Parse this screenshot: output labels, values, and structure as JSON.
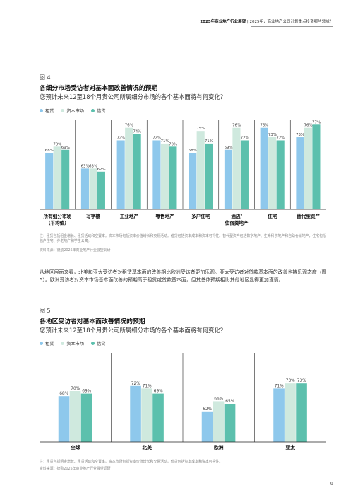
{
  "header": {
    "title_bold": "2025年商业地产行业展望",
    "title_rest": " | 2025年，商业地产公司计划重点投资哪些领域？"
  },
  "colors": {
    "rent": "#8ec8ec",
    "capital": "#cfe9de",
    "debt": "#5cc0ad",
    "grid": "#222222"
  },
  "figure4": {
    "label": "图 4",
    "title": "各细分市场受访者对基本面改善情况的预期",
    "subtitle": "您预计未来12至18个月贵公司所属细分市场的各个基本面将有何变化？",
    "legend": [
      "租赁",
      "资本市场",
      "借贷"
    ],
    "note": "注：租赁包括租金增长、租赁活动和空置率。资本市场包括资本价值增长和交易活动。借贷包括资本成本和资本可得性。替代型资产包括数字地产、生命科学地产和自助仓储地产，住宅包括独户住宅、养老地产和学生公寓。",
    "source": "资料来源：德勤2025年商业地产行业展望调研"
  },
  "chart_data": [
    {
      "type": "bar",
      "categories": [
        "所有细分市场（平均值）",
        "写字楼",
        "工业地产",
        "零售地产",
        "多户住宅",
        "酒店/住宿类地产",
        "住宅",
        "替代型资产"
      ],
      "category_lines": [
        [
          "所有细分市场",
          "（平均值）"
        ],
        [
          "写字楼"
        ],
        [
          "工业地产"
        ],
        [
          "零售地产"
        ],
        [
          "多户住宅"
        ],
        [
          "酒店/",
          "住宿类地产"
        ],
        [
          "住宅"
        ],
        [
          "替代型资产"
        ]
      ],
      "series": [
        {
          "name": "租赁",
          "values": [
            68,
            63,
            72,
            72,
            68,
            69,
            76,
            73
          ]
        },
        {
          "name": "资本市场",
          "values": [
            70,
            63,
            76,
            71,
            75,
            76,
            73,
            76
          ]
        },
        {
          "name": "借贷",
          "values": [
            69,
            62,
            74,
            70,
            71,
            72,
            72,
            77
          ]
        }
      ],
      "labels": [
        [
          "68%",
          "63%",
          "72%",
          "72%",
          "68%",
          "69%",
          "76%",
          "73%"
        ],
        [
          "70%",
          "63%",
          "76%",
          "71%",
          "75%",
          "76%",
          "73%",
          "76%"
        ],
        [
          "69%",
          "62%",
          "74%",
          "70%",
          "71%",
          "72%",
          "72%",
          "77%"
        ]
      ],
      "ylim": [
        50,
        80
      ]
    },
    {
      "type": "bar",
      "categories": [
        "全球",
        "北美",
        "欧洲",
        "亚太"
      ],
      "category_lines": [
        [
          "全球"
        ],
        [
          "北美"
        ],
        [
          "欧洲"
        ],
        [
          "亚太"
        ]
      ],
      "series": [
        {
          "name": "租赁",
          "values": [
            68,
            72,
            62,
            71
          ]
        },
        {
          "name": "资本市场",
          "values": [
            70,
            71,
            66,
            73
          ]
        },
        {
          "name": "借贷",
          "values": [
            69,
            69,
            65,
            73
          ]
        }
      ],
      "labels": [
        [
          "68%",
          "72%",
          "62%",
          "71%"
        ],
        [
          "70%",
          "71%",
          "66%",
          "73%"
        ],
        [
          "69%",
          "69%",
          "65%",
          "73%"
        ]
      ],
      "ylim": [
        50,
        80
      ]
    }
  ],
  "paragraph": "从地区层面来看，北美和亚太受访者对租赁基本面的改善相比欧洲受访者更加乐观。亚太受访者对贷款基本面的改善也持乐观态度（图5）。欧洲受访者对资本市场基本面改善的预期高于租赁或贷款基本面，但其总体预期相比其他地区显得更加谨慎。",
  "figure5": {
    "label": "图 5",
    "title": "各地区受访者对基本面改善情况的预期",
    "subtitle": "您预计未来12至18个月贵公司所属细分市场的各个基本面将有何变化？",
    "legend": [
      "租赁",
      "资本市场",
      "借贷"
    ],
    "note": "注：租赁包括租金增长、租赁活动和空置率。资本市场包括资本价值增长和交易活动。借贷包括资本成本和资本可得性。",
    "source": "资料来源：德勤2025年商业地产行业展望调研"
  },
  "page_number": "9"
}
